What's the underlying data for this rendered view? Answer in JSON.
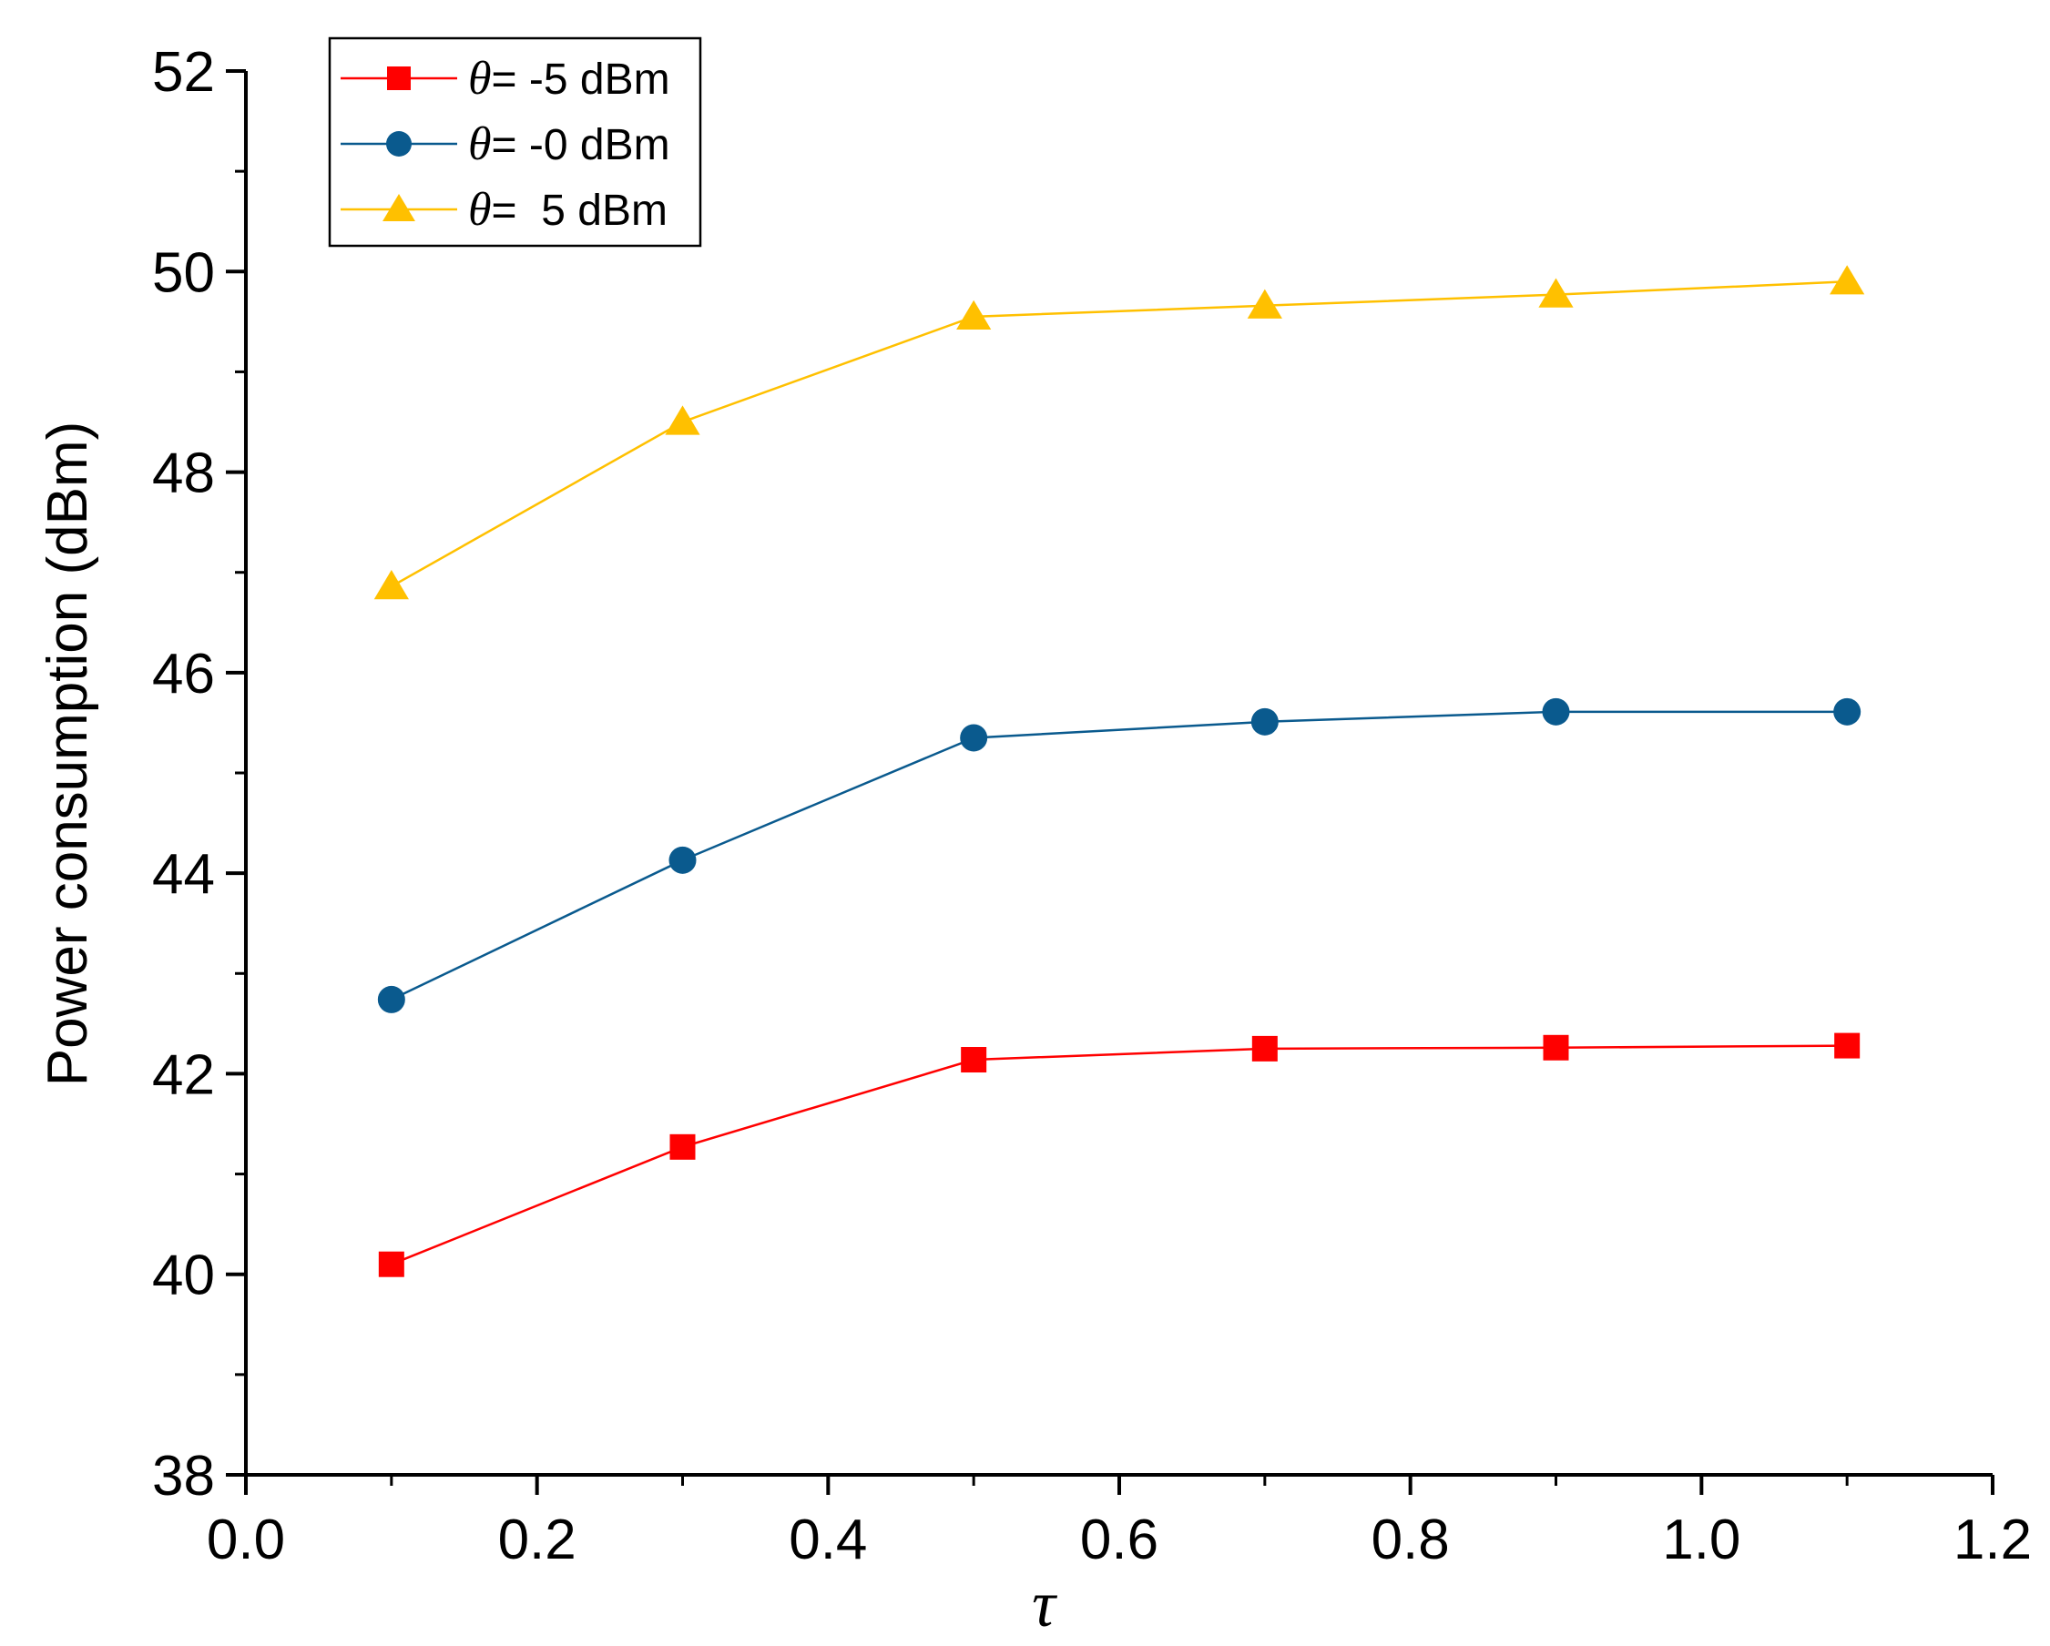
{
  "chart_data": {
    "type": "line",
    "title": "",
    "xlabel": "τ",
    "ylabel": "Power consumption (dBm)",
    "xlim": [
      0.0,
      1.2
    ],
    "ylim": [
      38,
      52
    ],
    "x_ticks": [
      "0.0",
      "0.2",
      "0.4",
      "0.6",
      "0.8",
      "1.0",
      "1.2"
    ],
    "y_ticks": [
      "38",
      "40",
      "42",
      "44",
      "46",
      "48",
      "50",
      "52"
    ],
    "x": [
      0.1,
      0.3,
      0.5,
      0.7,
      0.9,
      1.1
    ],
    "legend_position": "top-left",
    "series": [
      {
        "name": "θ= -5 dBm",
        "legend_symbol": "θ",
        "legend_text": "= -5 dBm",
        "color": "#ff0000",
        "marker": "square",
        "values": [
          40.1,
          41.27,
          42.14,
          42.25,
          42.26,
          42.28
        ]
      },
      {
        "name": "θ= -0 dBm",
        "legend_symbol": "θ",
        "legend_text": "= -0 dBm",
        "color": "#0a5a8e",
        "marker": "circle",
        "values": [
          42.74,
          44.13,
          45.35,
          45.51,
          45.61,
          45.61
        ]
      },
      {
        "name": "θ=  5 dBm",
        "legend_symbol": "θ",
        "legend_text": "=  5 dBm",
        "color": "#ffc000",
        "marker": "triangle",
        "values": [
          46.86,
          48.5,
          49.55,
          49.66,
          49.77,
          49.9
        ]
      }
    ]
  }
}
